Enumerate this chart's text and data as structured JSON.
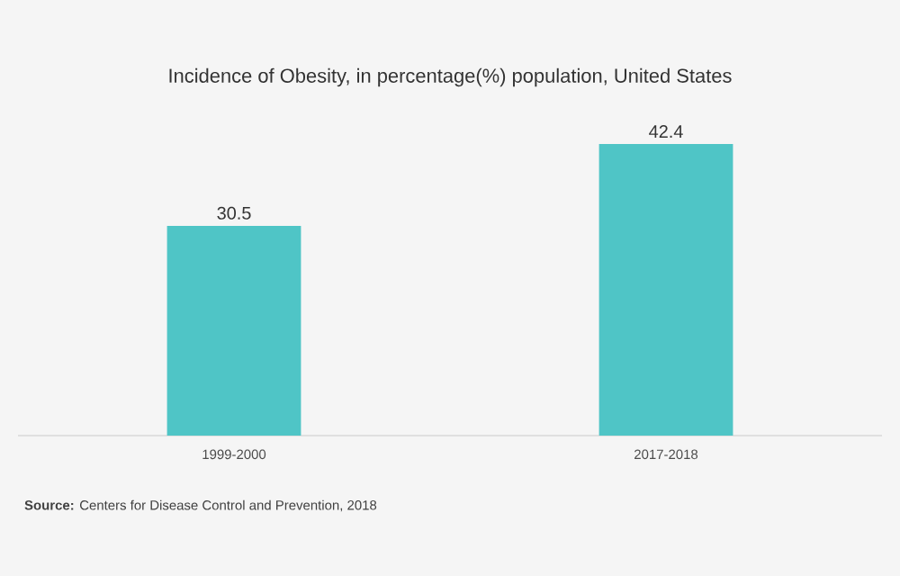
{
  "chart_data": {
    "type": "bar",
    "title": "Incidence of Obesity, in percentage(%) population, United States",
    "categories": [
      "1999-2000",
      "2017-2018"
    ],
    "values": [
      30.5,
      42.4
    ],
    "color": "#4fc5c6",
    "data_labels": true,
    "annotations": [
      "**Source:** Centers for Disease Control and Prevention, 2018"
    ]
  }
}
